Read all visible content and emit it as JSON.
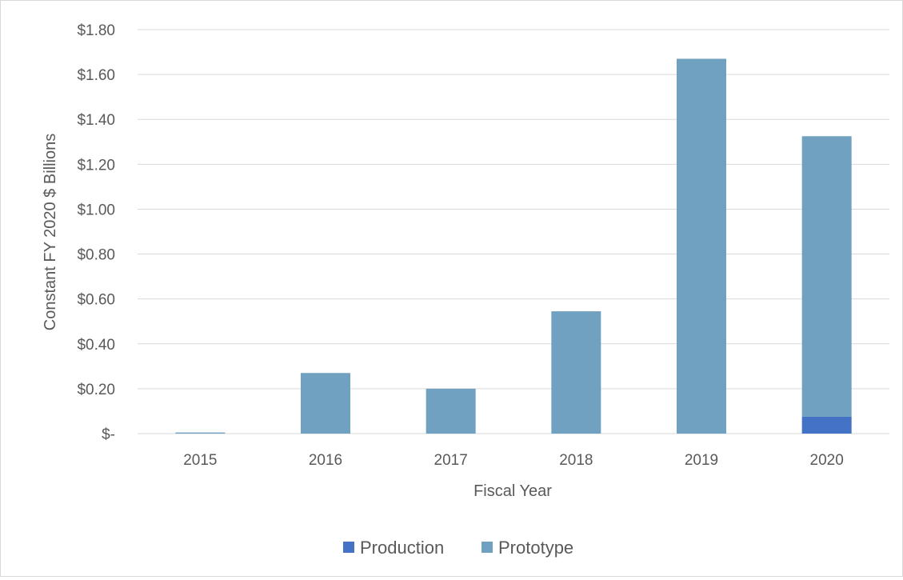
{
  "chart_data": {
    "type": "bar",
    "stacked": true,
    "categories": [
      "2015",
      "2016",
      "2017",
      "2018",
      "2019",
      "2020"
    ],
    "series": [
      {
        "name": "Production",
        "color": "#4472c4",
        "values": [
          0,
          0,
          0,
          0,
          0,
          0.075
        ]
      },
      {
        "name": "Prototype",
        "color": "#70a1c0",
        "values": [
          0.005,
          0.27,
          0.2,
          0.545,
          1.67,
          1.25
        ]
      }
    ],
    "title": "",
    "xlabel": "Fiscal Year",
    "ylabel": "Constant FY 2020 $ Billions",
    "ylim": [
      0,
      1.8
    ],
    "yticks": [
      0,
      0.2,
      0.4,
      0.6,
      0.8,
      1.0,
      1.2,
      1.4,
      1.6,
      1.8
    ],
    "ytick_labels": [
      "$-",
      "$0.20",
      "$0.40",
      "$0.60",
      "$0.80",
      "$1.00",
      "$1.20",
      "$1.40",
      "$1.60",
      "$1.80"
    ],
    "grid": true,
    "gridline_color": "#d9d9d9",
    "legend_position": "bottom"
  }
}
